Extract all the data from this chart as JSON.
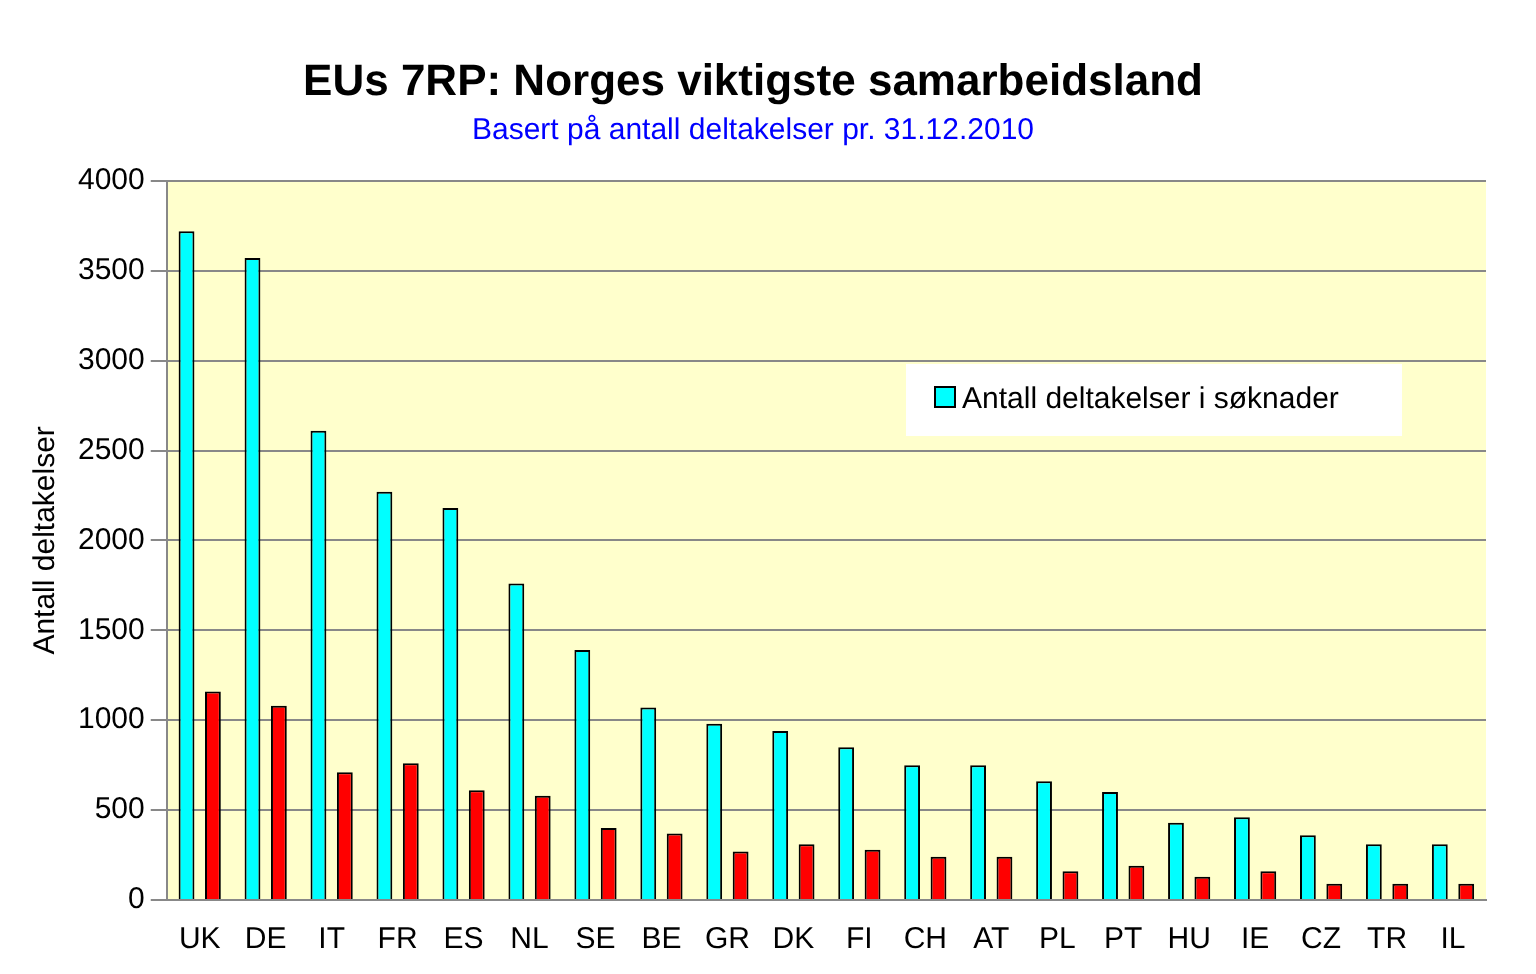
{
  "chart_data": {
    "type": "bar",
    "title": "EUs 7RP: Norges viktigste samarbeidsland",
    "subtitle": "Basert på antall deltakelser pr. 31.12.2010",
    "ylabel": "Antall deltakelser",
    "categories": [
      "UK",
      "DE",
      "IT",
      "FR",
      "ES",
      "NL",
      "SE",
      "BE",
      "GR",
      "DK",
      "FI",
      "CH",
      "AT",
      "PL",
      "PT",
      "HU",
      "IE",
      "CZ",
      "TR",
      "IL"
    ],
    "series": [
      {
        "name": "Antall deltakelser i søknader",
        "color": "#00ffff",
        "values": [
          3720,
          3570,
          2610,
          2270,
          2180,
          1760,
          1390,
          1070,
          980,
          940,
          850,
          750,
          750,
          660,
          600,
          430,
          460,
          360,
          310,
          310
        ]
      },
      {
        "color": "#ff0000",
        "values": [
          1160,
          1080,
          710,
          760,
          610,
          580,
          400,
          370,
          270,
          310,
          280,
          240,
          240,
          160,
          190,
          130,
          160,
          90,
          90,
          90
        ]
      }
    ],
    "ylim": [
      0,
      4000
    ],
    "yticks": [
      0,
      500,
      1000,
      1500,
      2000,
      2500,
      3000,
      3500,
      4000
    ],
    "grid": "y",
    "legend": "top right"
  }
}
